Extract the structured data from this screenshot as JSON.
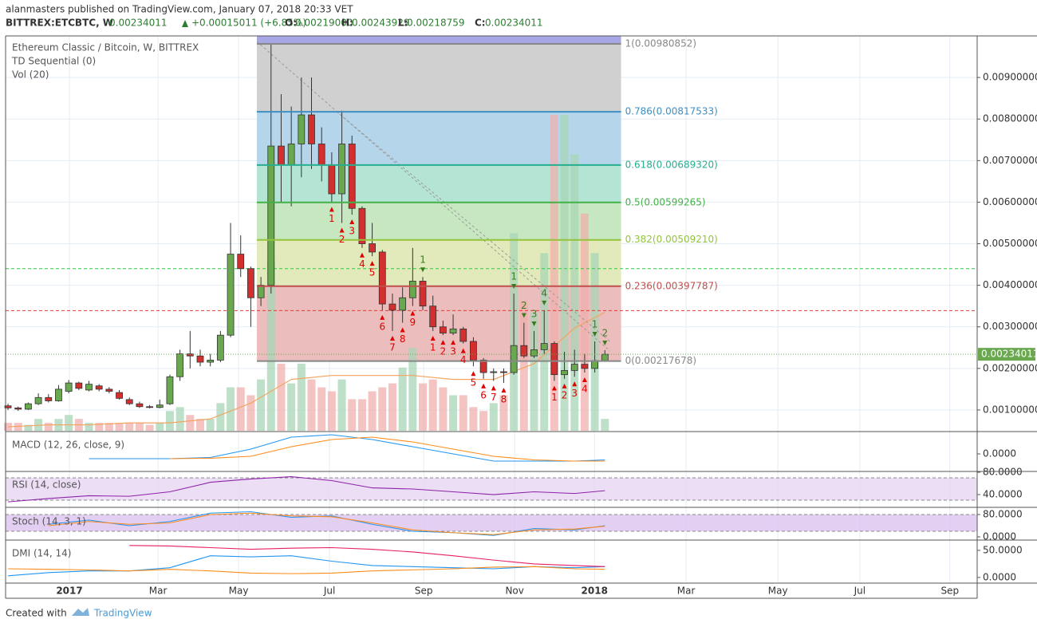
{
  "header": {
    "publisher": "alanmasters published on TradingView.com, January 07, 2018 20:33 VET",
    "symbol": "BITTREX:ETCBTC, W",
    "price": "0.00234011",
    "change": "+0.00015011 (+6.85%)",
    "ohlc": [
      {
        "label": "O:",
        "value": "0.00219000"
      },
      {
        "label": "H:",
        "value": "0.00243929"
      },
      {
        "label": "L:",
        "value": "0.00218759"
      },
      {
        "label": "C:",
        "value": "0.00234011"
      }
    ]
  },
  "footer": {
    "created": "Created with",
    "brand": "TradingView"
  },
  "chart_data": [
    {
      "type": "candlestick",
      "title": "Ethereum Classic / Bitcoin, W, BITTREX",
      "indicators": [
        "TD Sequential (0)",
        "Vol (20)"
      ],
      "up_color": "#6aa84f",
      "down_color": "#d32f2f",
      "open": [
        0.0011,
        0.00105,
        0.00102,
        0.00115,
        0.0013,
        0.00122,
        0.00145,
        0.00165,
        0.00148,
        0.00158,
        0.0015,
        0.00142,
        0.00125,
        0.00115,
        0.00108,
        0.00106,
        0.00115,
        0.0018,
        0.00235,
        0.0023,
        0.00215,
        0.0022,
        0.0028,
        0.00475,
        0.0044,
        0.0037,
        0.004,
        0.00735,
        0.0069,
        0.0074,
        0.0081,
        0.0074,
        0.0069,
        0.0062,
        0.0074,
        0.00585,
        0.005,
        0.0048,
        0.00355,
        0.0034,
        0.0037,
        0.0041,
        0.0035,
        0.003,
        0.00285,
        0.00295,
        0.00265,
        0.0022,
        0.0019,
        0.00192,
        0.0019,
        0.00255,
        0.0023,
        0.00245,
        0.0026,
        0.00185,
        0.00195,
        0.0021,
        0.002,
        0.00219
      ],
      "high": [
        0.00115,
        0.00108,
        0.00118,
        0.0014,
        0.00138,
        0.0016,
        0.00172,
        0.00168,
        0.0017,
        0.00162,
        0.00155,
        0.00148,
        0.0013,
        0.0012,
        0.00112,
        0.00125,
        0.00185,
        0.00245,
        0.0029,
        0.00245,
        0.00235,
        0.0029,
        0.0055,
        0.0052,
        0.00445,
        0.0042,
        0.0098,
        0.0086,
        0.0083,
        0.009,
        0.009,
        0.0078,
        0.0072,
        0.0082,
        0.0076,
        0.0059,
        0.0055,
        0.00485,
        0.0038,
        0.00395,
        0.0049,
        0.0042,
        0.00375,
        0.00315,
        0.0033,
        0.003,
        0.00275,
        0.00225,
        0.002,
        0.002,
        0.0038,
        0.0031,
        0.0029,
        0.0034,
        0.00265,
        0.0024,
        0.00245,
        0.00235,
        0.00265,
        0.00243929
      ],
      "low": [
        0.001,
        0.00098,
        0.001,
        0.00112,
        0.00118,
        0.0012,
        0.0014,
        0.00148,
        0.00145,
        0.00145,
        0.0014,
        0.00125,
        0.00112,
        0.00105,
        0.00104,
        0.00104,
        0.00112,
        0.0017,
        0.002,
        0.00205,
        0.00205,
        0.00215,
        0.00275,
        0.0042,
        0.003,
        0.0035,
        0.0038,
        0.006,
        0.0059,
        0.0066,
        0.0068,
        0.0065,
        0.006,
        0.0055,
        0.0057,
        0.0049,
        0.0047,
        0.0034,
        0.0029,
        0.0031,
        0.0035,
        0.0034,
        0.0029,
        0.0028,
        0.0028,
        0.0026,
        0.00205,
        0.00175,
        0.0017,
        0.00165,
        0.00185,
        0.00225,
        0.00225,
        0.00235,
        0.0017,
        0.00175,
        0.0018,
        0.0019,
        0.0019,
        0.00218759
      ],
      "close": [
        0.00105,
        0.00102,
        0.00115,
        0.0013,
        0.00122,
        0.0015,
        0.00165,
        0.00152,
        0.00162,
        0.0015,
        0.00145,
        0.00128,
        0.00115,
        0.00108,
        0.00106,
        0.00112,
        0.0018,
        0.00235,
        0.0023,
        0.00215,
        0.0022,
        0.0028,
        0.00475,
        0.0044,
        0.0037,
        0.004,
        0.00735,
        0.0069,
        0.0074,
        0.0081,
        0.0074,
        0.0069,
        0.0062,
        0.0074,
        0.00585,
        0.005,
        0.0048,
        0.00355,
        0.0034,
        0.0037,
        0.0041,
        0.0035,
        0.003,
        0.00285,
        0.00295,
        0.00265,
        0.0022,
        0.0019,
        0.00192,
        0.0019,
        0.00255,
        0.0023,
        0.00245,
        0.0026,
        0.00185,
        0.00195,
        0.0021,
        0.002,
        0.00219,
        0.00234011
      ],
      "volume": {
        "values": [
          2,
          2,
          1.5,
          3,
          2,
          3,
          4,
          3,
          2,
          2,
          2,
          2,
          2,
          2,
          1.5,
          2,
          5,
          6,
          4,
          3,
          3,
          7,
          11,
          11,
          9,
          13,
          43,
          17,
          12,
          17,
          13,
          11,
          10,
          13,
          8,
          8,
          10,
          11,
          12,
          16,
          21,
          12,
          13,
          11,
          9,
          9,
          6,
          5,
          7,
          9,
          50,
          33,
          30,
          45,
          80,
          80,
          70,
          55,
          45,
          3
        ],
        "ylim": [
          0,
          100
        ],
        "up_color": "#a8d5b5",
        "down_color": "#efb0ad",
        "ma_x": [
          0,
          4,
          8,
          12,
          16,
          20,
          24,
          28,
          32,
          36,
          40,
          44,
          48,
          52,
          56,
          59
        ],
        "ma_values": [
          1,
          1.5,
          1.5,
          2,
          2,
          3,
          7,
          13,
          14,
          14,
          14,
          13,
          13,
          17,
          26,
          30
        ],
        "ma_color": "#f4a460"
      },
      "xlim": [
        -0.24,
        95.8
      ],
      "xticks": [
        {
          "value": 6.07,
          "label": "2017"
        },
        {
          "value": 14.83,
          "label": "Mar"
        },
        {
          "value": 22.79,
          "label": "May"
        },
        {
          "value": 31.78,
          "label": "Jul"
        },
        {
          "value": 41.09,
          "label": "Sep"
        },
        {
          "value": 50.08,
          "label": "Nov"
        },
        {
          "value": 57.97,
          "label": "2018"
        },
        {
          "value": 67.03,
          "label": "Mar"
        },
        {
          "value": 76.1,
          "label": "May"
        },
        {
          "value": 84.2,
          "label": "Jul"
        },
        {
          "value": 93.1,
          "label": "Sep"
        }
      ],
      "ylim": [
        0.0005,
        0.01
      ],
      "yticks": [
        {
          "value": 0.001,
          "label": "0.00100000"
        },
        {
          "value": 0.002,
          "label": "0.00200000"
        },
        {
          "value": 0.003,
          "label": "0.00300000"
        },
        {
          "value": 0.004,
          "label": "0.00400000"
        },
        {
          "value": 0.005,
          "label": "0.00500000"
        },
        {
          "value": 0.006,
          "label": "0.00600000"
        },
        {
          "value": 0.007,
          "label": "0.00700000"
        },
        {
          "value": 0.008,
          "label": "0.00800000"
        },
        {
          "value": 0.009,
          "label": "0.00900000"
        }
      ],
      "grid": true,
      "fib": {
        "x_range": [
          24.6,
          60.6
        ],
        "top_color": "#a7a7e6",
        "levels": [
          {
            "value": 0.00980852,
            "label": "1(0.00980852)",
            "color": "#888888"
          },
          {
            "value": 0.00817533,
            "label": "0.786(0.00817533)",
            "color": "#3f8fc4"
          },
          {
            "value": 0.0068932,
            "label": "0.618(0.00689320)",
            "color": "#27ae8f"
          },
          {
            "value": 0.00599265,
            "label": "0.5(0.00599265)",
            "color": "#43b048"
          },
          {
            "value": 0.0050921,
            "label": "0.382(0.00509210)",
            "color": "#93c43b"
          },
          {
            "value": 0.00397787,
            "label": "0.236(0.00397787)",
            "color": "#c0504d"
          },
          {
            "value": 0.00217678,
            "label": "0(0.00217678)",
            "color": "#888888"
          }
        ],
        "zone_colors": [
          "#d0d0d0",
          "#b5d5ea",
          "#b4e4d4",
          "#c6e7bf",
          "#e2e9ba",
          "#ecbdbd"
        ]
      },
      "hlines": [
        {
          "value": 0.0044,
          "color": "#2ecc40"
        },
        {
          "value": 0.00339,
          "color": "#e53935"
        }
      ],
      "last_price": 0.00234011,
      "last_color": "#6aa84f",
      "td_setup": [
        {
          "position": "below",
          "color": "#e00000",
          "x": [
            32,
            33,
            34,
            35,
            36,
            37,
            38,
            39,
            40,
            42,
            43,
            44,
            45,
            46,
            47,
            48,
            49,
            54,
            55,
            56,
            57
          ],
          "labels": [
            1,
            2,
            3,
            4,
            5,
            6,
            7,
            8,
            9,
            1,
            2,
            3,
            4,
            5,
            6,
            7,
            8,
            1,
            2,
            3,
            4
          ]
        },
        {
          "position": "above",
          "color": "#3c7a22",
          "x": [
            41,
            50,
            51,
            52,
            53,
            58,
            59
          ],
          "labels": [
            1,
            1,
            2,
            3,
            4,
            1,
            2
          ]
        }
      ]
    },
    {
      "type": "line",
      "title": "MACD (12, 26, close, 9)",
      "x": [
        0,
        4,
        8,
        12,
        16,
        20,
        24,
        28,
        32,
        36,
        40,
        44,
        48,
        52,
        56,
        59
      ],
      "ylim": [
        -0.0007,
        0.0009
      ],
      "yticks": [
        {
          "value": 0,
          "label": "0.0000"
        }
      ],
      "series": [
        {
          "color": "#2196f3",
          "values": [
            null,
            null,
            -0.0002,
            -0.0002,
            -0.0002,
            -0.00015,
            0.0002,
            0.0007,
            0.0008,
            0.0006,
            0.0003,
            0,
            -0.0003,
            -0.0003,
            -0.0003,
            -0.00025
          ]
        },
        {
          "color": "#ff8c1a",
          "values": [
            null,
            null,
            null,
            null,
            -0.0002,
            -0.00018,
            -0.0001,
            0.0003,
            0.0006,
            0.0007,
            0.0005,
            0.0002,
            -0.0001,
            -0.00025,
            -0.0003,
            -0.0003
          ]
        }
      ]
    },
    {
      "type": "line",
      "title": "RSI (14, close)",
      "x": [
        0,
        4,
        8,
        12,
        16,
        20,
        24,
        28,
        32,
        36,
        40,
        44,
        48,
        52,
        56,
        59
      ],
      "ylim": [
        18.6,
        80
      ],
      "yticks": [
        {
          "value": 80,
          "label": "80.0000"
        },
        {
          "value": 40,
          "label": "40.0000"
        }
      ],
      "band": [
        30,
        70
      ],
      "band_color": "#e7d6f3",
      "series": [
        {
          "color": "#8e24aa",
          "values": [
            27,
            33,
            38,
            37,
            45,
            62,
            68,
            72,
            65,
            52,
            50,
            45,
            40,
            45,
            42,
            47
          ]
        }
      ]
    },
    {
      "type": "line",
      "title": "Stoch (14, 3, 1)",
      "x": [
        0,
        4,
        8,
        12,
        16,
        20,
        24,
        28,
        32,
        36,
        40,
        44,
        48,
        52,
        56,
        59
      ],
      "ylim": [
        -8.6,
        100
      ],
      "yticks": [
        {
          "value": 80,
          "label": "80.0000"
        },
        {
          "value": 0,
          "label": "0.0000"
        }
      ],
      "band": [
        20,
        80
      ],
      "band_color": "#dcc3ef",
      "series": [
        {
          "color": "#2196f3",
          "values": [
            null,
            45,
            60,
            40,
            55,
            85,
            90,
            70,
            75,
            45,
            20,
            15,
            5,
            30,
            25,
            40
          ]
        },
        {
          "color": "#ff8c1a",
          "values": [
            null,
            40,
            55,
            45,
            50,
            80,
            85,
            75,
            72,
            50,
            25,
            15,
            8,
            25,
            28,
            38
          ]
        }
      ]
    },
    {
      "type": "line",
      "title": "DMI (14, 14)",
      "x": [
        0,
        4,
        8,
        12,
        16,
        20,
        24,
        28,
        32,
        36,
        40,
        44,
        48,
        52,
        56,
        59
      ],
      "ylim": [
        -9,
        67.5
      ],
      "yticks": [
        {
          "value": 50,
          "label": "50.0000"
        },
        {
          "value": 0,
          "label": "0.0000"
        }
      ],
      "series": [
        {
          "color": "#2196f3",
          "values": [
            3,
            9,
            12,
            12,
            18,
            40,
            38,
            40,
            30,
            22,
            20,
            18,
            16,
            20,
            18,
            20
          ]
        },
        {
          "color": "#ff8c1a",
          "values": [
            16,
            15,
            14,
            12,
            15,
            12,
            8,
            7,
            8,
            12,
            14,
            16,
            19,
            20,
            16,
            15
          ]
        },
        {
          "color": "#e91e63",
          "values": [
            null,
            null,
            null,
            59,
            58,
            55,
            52,
            54,
            55,
            52,
            47,
            40,
            32,
            25,
            22,
            20
          ]
        }
      ]
    }
  ]
}
